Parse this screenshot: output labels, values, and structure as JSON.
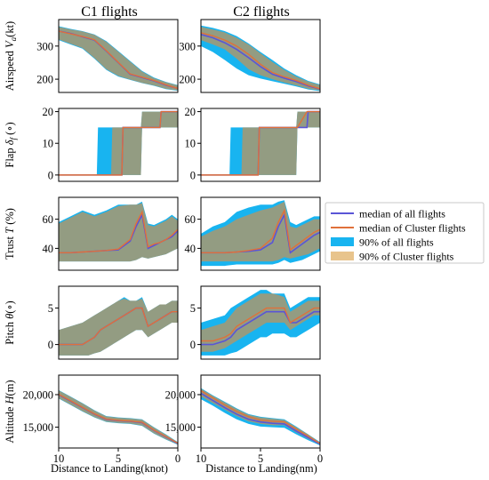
{
  "colors": {
    "median_all": "#5a55d6",
    "median_cluster": "#e0703a",
    "band_all": "#18b4f0",
    "band_cluster": "#e8c48c",
    "band_overlap": "#9e9a78"
  },
  "legend": {
    "placement": "right",
    "items": [
      {
        "label": "median of all flights",
        "kind": "line",
        "color_key": "median_all"
      },
      {
        "label": "median of Cluster flights",
        "kind": "line",
        "color_key": "median_cluster"
      },
      {
        "label": "90% of all flights",
        "kind": "patch",
        "color_key": "band_all"
      },
      {
        "label": "90% of Cluster flights",
        "kind": "patch",
        "color_key": "band_cluster"
      }
    ]
  },
  "columns": [
    {
      "title": "C1 flights",
      "xlabel": "Distance to Landing(knot)"
    },
    {
      "title": "C2 flights",
      "xlabel": "Distance to Landing(nm)"
    }
  ],
  "chart_data": [
    {
      "type": "area",
      "row": 0,
      "col": 0,
      "ylabel": "Airspeed V_a(kt)",
      "ylabel_main": "Airspeed ",
      "ylabel_sym": "V",
      "ylabel_sub": "a",
      "ylabel_unit": "(kt)",
      "xlim": [
        10,
        0
      ],
      "ylim": [
        160,
        380
      ],
      "yticks": [
        200,
        300
      ],
      "x": [
        10,
        9,
        8,
        7,
        6,
        5,
        4,
        3,
        2,
        1,
        0
      ],
      "median_all": [
        345,
        338,
        328,
        318,
        285,
        250,
        215,
        205,
        195,
        182,
        172
      ],
      "median_cluster": [
        345,
        337,
        329,
        319,
        286,
        251,
        216,
        206,
        196,
        183,
        172
      ],
      "band_all_low": [
        318,
        305,
        292,
        262,
        228,
        208,
        198,
        188,
        180,
        170,
        165
      ],
      "band_all_high": [
        360,
        352,
        345,
        335,
        315,
        285,
        255,
        225,
        205,
        192,
        182
      ],
      "band_cluster_low": [
        320,
        307,
        294,
        264,
        230,
        210,
        199,
        189,
        181,
        171,
        166
      ],
      "band_cluster_high": [
        358,
        350,
        344,
        334,
        313,
        283,
        253,
        223,
        203,
        191,
        181
      ]
    },
    {
      "type": "area",
      "row": 0,
      "col": 1,
      "xlim": [
        10,
        0
      ],
      "ylim": [
        160,
        380
      ],
      "yticks": [
        200,
        300
      ],
      "x": [
        10,
        9,
        8,
        7,
        6,
        5,
        4,
        3,
        2,
        1,
        0
      ],
      "median_all": [
        335,
        325,
        310,
        290,
        265,
        238,
        215,
        203,
        193,
        180,
        170
      ],
      "median_cluster": [
        340,
        331,
        318,
        300,
        275,
        245,
        220,
        207,
        196,
        182,
        171
      ],
      "band_all_low": [
        300,
        282,
        258,
        232,
        212,
        202,
        194,
        186,
        178,
        169,
        164
      ],
      "band_all_high": [
        362,
        355,
        345,
        330,
        308,
        282,
        258,
        232,
        212,
        195,
        184
      ],
      "band_cluster_low": [
        318,
        305,
        290,
        262,
        230,
        212,
        200,
        190,
        181,
        171,
        166
      ],
      "band_cluster_high": [
        358,
        350,
        341,
        325,
        305,
        278,
        252,
        228,
        208,
        193,
        182
      ]
    },
    {
      "type": "area",
      "row": 1,
      "col": 0,
      "ylabel": "Flap δ_f(∘)",
      "ylabel_main": "Flap ",
      "ylabel_sym": "δ",
      "ylabel_sub": "f",
      "ylabel_unit": " (∘)",
      "xlim": [
        10,
        0
      ],
      "ylim": [
        -2,
        21
      ],
      "yticks": [
        0,
        10,
        20
      ],
      "x": [
        10,
        6.8,
        6.7,
        5.6,
        5.5,
        4.7,
        4.6,
        3.1,
        3.0,
        1.5,
        1.4,
        0
      ],
      "median_all": [
        0,
        0,
        0,
        0,
        0,
        0,
        15,
        15,
        15,
        15,
        20,
        20
      ],
      "median_cluster": [
        0,
        0,
        0,
        0,
        0,
        0,
        15,
        15,
        15,
        15,
        20,
        20
      ],
      "band_all_low": [
        0,
        0,
        0,
        0,
        0,
        0,
        0,
        0,
        15,
        15,
        15,
        15
      ],
      "band_all_high": [
        0,
        0,
        15,
        15,
        15,
        15,
        15,
        15,
        20,
        20,
        20,
        20
      ],
      "band_cluster_low": [
        0,
        0,
        0,
        0,
        0,
        0,
        0,
        0,
        15,
        15,
        15,
        15
      ],
      "band_cluster_high": [
        0,
        0,
        0,
        0,
        15,
        15,
        15,
        15,
        20,
        20,
        20,
        20
      ]
    },
    {
      "type": "area",
      "row": 1,
      "col": 1,
      "xlim": [
        10,
        0
      ],
      "ylim": [
        -2,
        21
      ],
      "yticks": [
        0,
        10,
        20
      ],
      "x": [
        10,
        7.6,
        7.5,
        6.6,
        6.5,
        5.2,
        5.1,
        2.0,
        1.9,
        1.1,
        1.0,
        0
      ],
      "median_all": [
        0,
        0,
        0,
        0,
        0,
        0,
        15,
        15,
        15,
        15,
        20,
        20
      ],
      "median_cluster": [
        0,
        0,
        0,
        0,
        0,
        0,
        15,
        15,
        15,
        20,
        20,
        20
      ],
      "band_all_low": [
        0,
        0,
        0,
        0,
        0,
        0,
        0,
        0,
        15,
        15,
        15,
        15
      ],
      "band_all_high": [
        0,
        0,
        15,
        15,
        15,
        15,
        15,
        15,
        20,
        20,
        20,
        20
      ],
      "band_cluster_low": [
        0,
        0,
        0,
        0,
        0,
        0,
        0,
        0,
        15,
        15,
        15,
        15
      ],
      "band_cluster_high": [
        0,
        0,
        0,
        0,
        15,
        15,
        15,
        15,
        20,
        20,
        20,
        20
      ]
    },
    {
      "type": "area",
      "row": 2,
      "col": 0,
      "ylabel": "Trust T (%)",
      "ylabel_main": "Trust ",
      "ylabel_sym": "T",
      "ylabel_sub": "",
      "ylabel_unit": " (%)",
      "xlim": [
        10,
        0
      ],
      "ylim": [
        25,
        75
      ],
      "yticks": [
        40,
        60
      ],
      "x": [
        10,
        9,
        8,
        7,
        6,
        5,
        4,
        3.5,
        3,
        2.5,
        2,
        1.5,
        1,
        0.5,
        0
      ],
      "median_all": [
        37,
        37,
        37.5,
        38,
        38.5,
        39,
        45,
        55,
        63,
        40,
        42,
        44,
        46,
        48,
        52
      ],
      "median_cluster": [
        37,
        37,
        37.5,
        38,
        38.5,
        39.5,
        46,
        57,
        65,
        41,
        43,
        44,
        46,
        49,
        53
      ],
      "band_all_low": [
        31,
        31,
        31,
        31,
        31,
        31,
        31,
        32,
        34,
        33,
        34,
        35,
        36,
        38,
        40
      ],
      "band_all_high": [
        58,
        62,
        66,
        63,
        66,
        70,
        70,
        70,
        72,
        57,
        56,
        58,
        60,
        63,
        60
      ],
      "band_cluster_low": [
        31,
        31,
        31,
        31,
        31,
        31,
        31,
        32,
        34,
        33,
        34,
        35,
        36,
        38,
        40
      ],
      "band_cluster_high": [
        57,
        61,
        65,
        62,
        65,
        69,
        70,
        70,
        71,
        56,
        55,
        57,
        59,
        62,
        59
      ]
    },
    {
      "type": "area",
      "row": 2,
      "col": 1,
      "xlim": [
        10,
        0
      ],
      "ylim": [
        25,
        75
      ],
      "yticks": [
        40,
        60
      ],
      "x": [
        10,
        9,
        8,
        7,
        6,
        5,
        4,
        3.5,
        3,
        2.5,
        2,
        1.5,
        1,
        0.5,
        0
      ],
      "median_all": [
        37,
        37,
        37,
        37.5,
        38,
        39,
        44,
        55,
        63,
        37,
        40,
        43,
        46,
        49,
        51
      ],
      "median_cluster": [
        37,
        37,
        37,
        37.5,
        38.5,
        40,
        47,
        58,
        66,
        39,
        42,
        45,
        48,
        51,
        53
      ],
      "band_all_low": [
        28,
        28,
        28,
        29,
        29,
        29,
        29,
        30,
        32,
        30,
        31,
        32,
        34,
        36,
        38
      ],
      "band_all_high": [
        50,
        55,
        58,
        65,
        68,
        70,
        70,
        72,
        73,
        58,
        56,
        58,
        60,
        62,
        62
      ],
      "band_cluster_low": [
        31,
        31,
        31,
        31,
        31,
        31,
        31,
        32,
        34,
        33,
        34,
        35,
        36,
        38,
        40
      ],
      "band_cluster_high": [
        48,
        52,
        55,
        60,
        63,
        66,
        68,
        70,
        72,
        55,
        54,
        56,
        58,
        60,
        60
      ]
    },
    {
      "type": "area",
      "row": 3,
      "col": 0,
      "ylabel": "Pitch θ(∘)",
      "ylabel_main": "Pitch ",
      "ylabel_sym": "θ",
      "ylabel_sub": "",
      "ylabel_unit": "(∘)",
      "xlim": [
        10,
        0
      ],
      "ylim": [
        -2,
        8
      ],
      "yticks": [
        0,
        5
      ],
      "x": [
        10,
        9,
        8,
        7.5,
        7,
        6.5,
        6,
        5.5,
        5,
        4.5,
        4,
        3.5,
        3,
        2.5,
        2,
        1.5,
        1,
        0.5,
        0
      ],
      "median_all": [
        0,
        0,
        0,
        0.5,
        1,
        2,
        2.5,
        3,
        3.5,
        4,
        4.5,
        5,
        5,
        2.5,
        3,
        3.5,
        4,
        4.5,
        4.5
      ],
      "median_cluster": [
        0,
        0,
        0,
        0.5,
        1,
        2,
        2.5,
        3,
        3.5,
        4,
        4.5,
        5,
        5,
        2.5,
        3,
        3.5,
        4,
        4.5,
        4.5
      ],
      "band_all_low": [
        -1.5,
        -1.5,
        -1.5,
        -1.5,
        -1.2,
        -1,
        -0.5,
        0,
        0.5,
        1,
        1.5,
        2,
        2,
        1,
        1.5,
        2,
        2.5,
        3,
        3
      ],
      "band_all_high": [
        2,
        2.5,
        3,
        3.5,
        4,
        4.5,
        5,
        5.5,
        6,
        6.5,
        6,
        6,
        6.5,
        4.5,
        5,
        5.5,
        5.5,
        6,
        6
      ],
      "band_cluster_low": [
        -1.5,
        -1.5,
        -1.5,
        -1.5,
        -1.2,
        -1,
        -0.5,
        0,
        0.5,
        1,
        1.5,
        2,
        2,
        1,
        1.5,
        2,
        2.5,
        3,
        3
      ],
      "band_cluster_high": [
        2,
        2.5,
        3,
        3.5,
        4,
        4.5,
        5,
        5.5,
        6,
        6.3,
        6,
        6,
        6.3,
        4.5,
        5,
        5.5,
        5.5,
        6,
        6
      ]
    },
    {
      "type": "area",
      "row": 3,
      "col": 1,
      "xlim": [
        10,
        0
      ],
      "ylim": [
        -2,
        8
      ],
      "yticks": [
        0,
        5
      ],
      "x": [
        10,
        9,
        8,
        7.5,
        7,
        6.5,
        6,
        5.5,
        5,
        4.5,
        4,
        3.5,
        3,
        2.5,
        2,
        1.5,
        1,
        0.5,
        0
      ],
      "median_all": [
        0,
        0,
        0.5,
        1,
        2,
        2.5,
        3,
        3.5,
        4,
        4.5,
        4.5,
        4.5,
        4.5,
        3,
        3,
        3.5,
        4,
        4.5,
        4.5
      ],
      "median_cluster": [
        0.5,
        0.5,
        1,
        1.5,
        2.5,
        3,
        3.5,
        4,
        4.5,
        5,
        5,
        5,
        5,
        3,
        3.5,
        4,
        4.5,
        5,
        5
      ],
      "band_all_low": [
        -1.5,
        -1.5,
        -1.5,
        -1.2,
        -1,
        -0.5,
        0,
        0.5,
        1,
        1,
        1.5,
        1.5,
        1.5,
        1,
        1,
        1.5,
        2,
        2.5,
        3
      ],
      "band_all_high": [
        3,
        3.5,
        4,
        5,
        5.5,
        6,
        6.5,
        7,
        7.5,
        7.5,
        7,
        7,
        7,
        5,
        5.5,
        6,
        6.5,
        6.5,
        6.5
      ],
      "band_cluster_low": [
        -1,
        -1,
        -0.5,
        0,
        0.5,
        1,
        1.5,
        2,
        2.5,
        3,
        3,
        3,
        3,
        2,
        2.5,
        3,
        3.5,
        4,
        4
      ],
      "band_cluster_high": [
        2,
        2.5,
        3,
        4,
        5,
        5.5,
        6,
        6.5,
        7,
        7,
        7,
        6.8,
        6.5,
        4.5,
        5,
        5.5,
        6,
        6,
        6
      ]
    },
    {
      "type": "area",
      "row": 4,
      "col": 0,
      "ylabel": "Altitude H(m)",
      "ylabel_main": "Altitude ",
      "ylabel_sym": "H",
      "ylabel_sub": "",
      "ylabel_unit": "(m)",
      "xlim": [
        10,
        0
      ],
      "ylim": [
        11800,
        23000
      ],
      "yticks": [
        15000,
        20000
      ],
      "ytick_labels": [
        "15,000",
        "20,000"
      ],
      "xticks": [
        10,
        5,
        0
      ],
      "x": [
        10,
        9,
        8,
        7,
        6,
        5,
        4,
        3,
        2,
        1,
        0
      ],
      "median_all": [
        20000,
        19000,
        18000,
        17000,
        16200,
        16000,
        15900,
        15700,
        14500,
        13500,
        12500
      ],
      "median_cluster": [
        20050,
        19050,
        18050,
        17050,
        16250,
        16050,
        15950,
        15750,
        14550,
        13550,
        12550
      ],
      "band_all_low": [
        19400,
        18400,
        17400,
        16500,
        15800,
        15600,
        15500,
        15200,
        14000,
        13100,
        12300
      ],
      "band_all_high": [
        20700,
        19700,
        18700,
        17600,
        16700,
        16500,
        16400,
        16200,
        15000,
        13900,
        12700
      ],
      "band_cluster_low": [
        19450,
        18450,
        17450,
        16550,
        15850,
        15650,
        15550,
        15250,
        14050,
        13150,
        12350
      ],
      "band_cluster_high": [
        20650,
        19650,
        18650,
        17550,
        16650,
        16450,
        16350,
        16150,
        14950,
        13850,
        12650
      ]
    },
    {
      "type": "area",
      "row": 4,
      "col": 1,
      "xlim": [
        10,
        0
      ],
      "ylim": [
        11800,
        23000
      ],
      "yticks": [
        15000,
        20000
      ],
      "ytick_labels": [
        "15,000",
        "20,000"
      ],
      "xticks": [
        10,
        5,
        0
      ],
      "x": [
        10,
        9,
        8,
        7,
        6,
        5,
        4,
        3,
        2,
        1,
        0
      ],
      "median_all": [
        20200,
        19100,
        18000,
        17000,
        16200,
        15800,
        15600,
        15500,
        14400,
        13400,
        12400
      ],
      "median_cluster": [
        20600,
        19500,
        18400,
        17400,
        16600,
        16100,
        15900,
        15800,
        14700,
        13600,
        12500
      ],
      "band_all_low": [
        19300,
        18300,
        17200,
        16200,
        15500,
        15100,
        15000,
        14900,
        13900,
        13000,
        12200
      ],
      "band_all_high": [
        21000,
        19900,
        18900,
        17900,
        17000,
        16600,
        16400,
        16200,
        15100,
        13900,
        12700
      ],
      "band_cluster_low": [
        19700,
        18700,
        17700,
        16700,
        15900,
        15500,
        15300,
        15300,
        14200,
        13200,
        12300
      ],
      "band_cluster_high": [
        20900,
        19800,
        18800,
        17800,
        16900,
        16500,
        16300,
        16100,
        15000,
        13900,
        12600
      ]
    }
  ]
}
